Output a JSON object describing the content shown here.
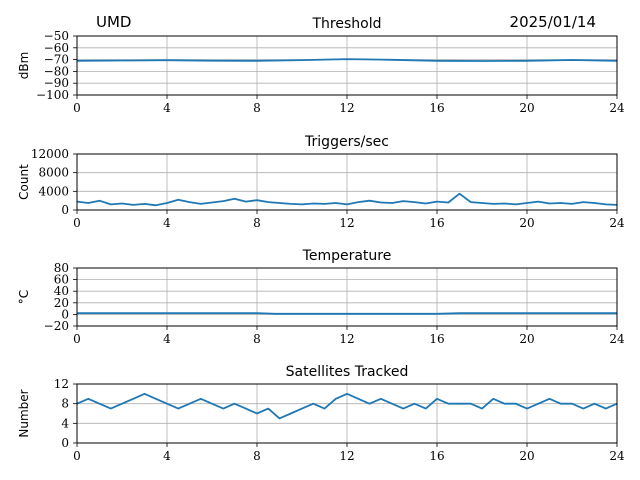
{
  "header": {
    "station": "UMD",
    "date": "2025/01/14"
  },
  "style": {
    "line_color": "#1f77b4",
    "grid_color": "#b0b0b0"
  },
  "chart_data": [
    {
      "id": "threshold",
      "type": "line",
      "title": "Threshold",
      "ylabel": "dBm",
      "xlim": [
        0,
        24
      ],
      "ylim": [
        -100,
        -50
      ],
      "xticks": [
        "0",
        "4",
        "8",
        "12",
        "16",
        "20",
        "24"
      ],
      "yticks": [
        "−50",
        "−60",
        "−70",
        "−80",
        "−90",
        "−100"
      ],
      "grid": true,
      "x": [
        0,
        2,
        4,
        6,
        8,
        10,
        12,
        14,
        16,
        18,
        20,
        22,
        24
      ],
      "series": [
        {
          "values": [
            -71,
            -70.8,
            -70.5,
            -70.9,
            -71,
            -70.4,
            -69.6,
            -70.2,
            -71,
            -71.2,
            -71,
            -70.3,
            -71
          ]
        }
      ]
    },
    {
      "id": "triggers",
      "type": "line",
      "title": "Triggers/sec",
      "ylabel": "Count",
      "xlim": [
        0,
        24
      ],
      "ylim": [
        0,
        12000
      ],
      "xticks": [
        "0",
        "4",
        "8",
        "12",
        "16",
        "20",
        "24"
      ],
      "yticks": [
        "12000",
        "8000",
        "4000",
        "0"
      ],
      "grid": true,
      "x": [
        0,
        0.5,
        1,
        1.5,
        2,
        2.5,
        3,
        3.5,
        4,
        4.5,
        5,
        5.5,
        6,
        6.5,
        7,
        7.5,
        8,
        8.5,
        9,
        9.5,
        10,
        10.5,
        11,
        11.5,
        12,
        12.5,
        13,
        13.5,
        14,
        14.5,
        15,
        15.5,
        16,
        16.5,
        17,
        17.5,
        18,
        18.5,
        19,
        19.5,
        20,
        20.5,
        21,
        21.5,
        22,
        22.5,
        23,
        23.5,
        24
      ],
      "series": [
        {
          "values": [
            1800,
            1500,
            2000,
            1200,
            1400,
            1100,
            1300,
            1000,
            1500,
            2200,
            1700,
            1300,
            1600,
            1900,
            2400,
            1800,
            2100,
            1700,
            1500,
            1300,
            1200,
            1400,
            1300,
            1500,
            1200,
            1700,
            2000,
            1600,
            1500,
            1900,
            1700,
            1400,
            1800,
            1600,
            3500,
            1700,
            1500,
            1300,
            1400,
            1200,
            1500,
            1800,
            1400,
            1500,
            1300,
            1700,
            1500,
            1200,
            1100
          ]
        }
      ]
    },
    {
      "id": "temperature",
      "type": "line",
      "title": "Temperature",
      "ylabel": "°C",
      "xlim": [
        0,
        24
      ],
      "ylim": [
        -20,
        80
      ],
      "xticks": [
        "0",
        "4",
        "8",
        "12",
        "16",
        "20",
        "24"
      ],
      "yticks": [
        "80",
        "60",
        "40",
        "20",
        "0",
        "−20"
      ],
      "grid": true,
      "x": [
        0,
        4,
        8,
        8.8,
        12,
        16,
        17,
        20,
        24
      ],
      "series": [
        {
          "values": [
            2,
            2,
            2,
            1,
            1,
            1,
            2,
            2,
            2
          ]
        }
      ]
    },
    {
      "id": "satellites",
      "type": "line",
      "title": "Satellites Tracked",
      "ylabel": "Number",
      "xlim": [
        0,
        24
      ],
      "ylim": [
        0,
        12
      ],
      "xticks": [
        "0",
        "4",
        "8",
        "12",
        "16",
        "20",
        "24"
      ],
      "yticks": [
        "12",
        "8",
        "4",
        "0"
      ],
      "grid": true,
      "x": [
        0,
        0.5,
        1,
        1.5,
        2,
        2.5,
        3,
        3.5,
        4,
        4.5,
        5,
        5.5,
        6,
        6.5,
        7,
        7.5,
        8,
        8.5,
        9,
        9.5,
        10,
        10.5,
        11,
        11.5,
        12,
        12.5,
        13,
        13.5,
        14,
        14.5,
        15,
        15.5,
        16,
        16.5,
        17,
        17.5,
        18,
        18.5,
        19,
        19.5,
        20,
        20.5,
        21,
        21.5,
        22,
        22.5,
        23,
        23.5,
        24
      ],
      "series": [
        {
          "values": [
            8,
            9,
            8,
            7,
            8,
            9,
            10,
            9,
            8,
            7,
            8,
            9,
            8,
            7,
            8,
            7,
            6,
            7,
            5,
            6,
            7,
            8,
            7,
            9,
            10,
            9,
            8,
            9,
            8,
            7,
            8,
            7,
            9,
            8,
            8,
            8,
            7,
            9,
            8,
            8,
            7,
            8,
            9,
            8,
            8,
            7,
            8,
            7,
            8
          ]
        }
      ]
    }
  ]
}
